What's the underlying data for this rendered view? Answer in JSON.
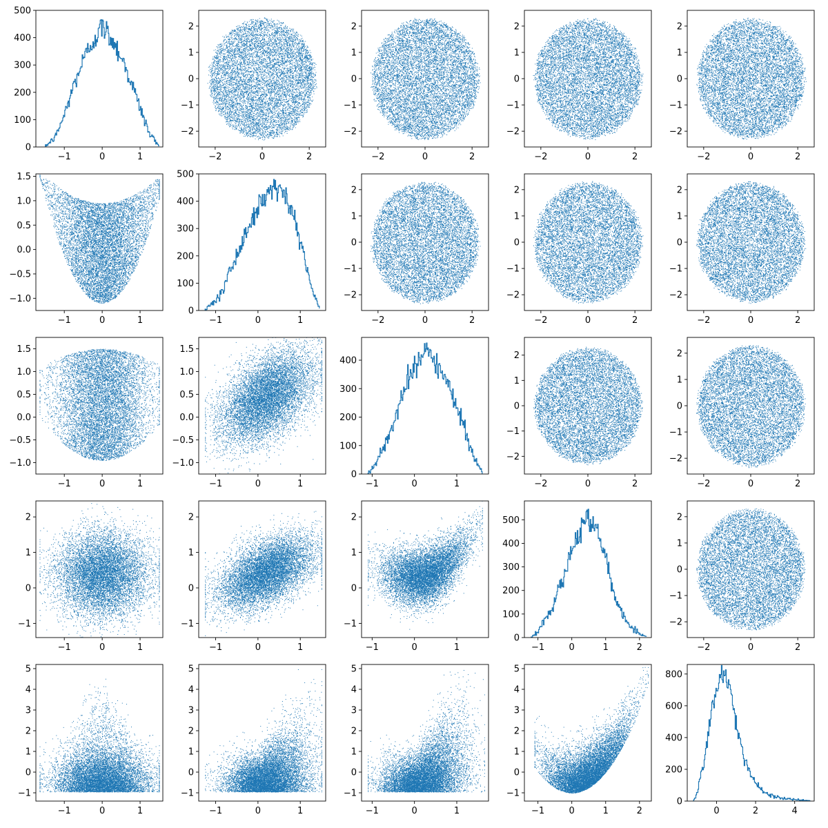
{
  "figure": {
    "rows": 5,
    "cols": 5,
    "accent_color": "#1f77b4"
  },
  "chart_data": [
    {
      "id": "r0c0",
      "type": "line",
      "shape": "hist",
      "mean": 0,
      "xlim": [
        -1.75,
        1.6
      ],
      "ylim": [
        0,
        500
      ],
      "x_ticks": [
        -1,
        0,
        1
      ],
      "y_ticks": [
        0,
        100,
        200,
        300,
        400,
        500
      ],
      "x": [
        -1.5,
        -1.25,
        -1.0,
        -0.75,
        -0.5,
        -0.25,
        0.0,
        0.25,
        0.5,
        0.75,
        1.0,
        1.25,
        1.5
      ],
      "y": [
        3,
        35,
        120,
        230,
        320,
        390,
        440,
        395,
        330,
        240,
        140,
        45,
        5
      ]
    },
    {
      "id": "r0c1",
      "type": "scatter",
      "shape": "blob",
      "xlim": [
        -2.7,
        2.7
      ],
      "ylim": [
        -2.6,
        2.6
      ],
      "x_ticks": [
        -2,
        0,
        2
      ],
      "y_ticks": [
        -2,
        -1,
        0,
        1,
        2
      ]
    },
    {
      "id": "r0c2",
      "type": "scatter",
      "shape": "blob",
      "xlim": [
        -2.7,
        2.7
      ],
      "ylim": [
        -2.6,
        2.6
      ],
      "x_ticks": [
        -2,
        0,
        2
      ],
      "y_ticks": [
        -2,
        -1,
        0,
        1,
        2
      ]
    },
    {
      "id": "r0c3",
      "type": "scatter",
      "shape": "blob",
      "xlim": [
        -2.7,
        2.7
      ],
      "ylim": [
        -2.6,
        2.6
      ],
      "x_ticks": [
        -2,
        0,
        2
      ],
      "y_ticks": [
        -2,
        -1,
        0,
        1,
        2
      ]
    },
    {
      "id": "r0c4",
      "type": "scatter",
      "shape": "blob",
      "xlim": [
        -2.7,
        2.7
      ],
      "ylim": [
        -2.6,
        2.6
      ],
      "x_ticks": [
        -2,
        0,
        2
      ],
      "y_ticks": [
        -2,
        -1,
        0,
        1,
        2
      ]
    },
    {
      "id": "r1c0",
      "type": "scatter",
      "shape": "bowl",
      "xlim": [
        -1.75,
        1.6
      ],
      "ylim": [
        -1.25,
        1.55
      ],
      "x_ticks": [
        -1,
        0,
        1
      ],
      "y_ticks": [
        -1.0,
        -0.5,
        0.0,
        0.5,
        1.0,
        1.5
      ]
    },
    {
      "id": "r1c1",
      "type": "line",
      "shape": "hist",
      "mean": 0.3,
      "xlim": [
        -1.4,
        1.6
      ],
      "ylim": [
        0,
        500
      ],
      "x_ticks": [
        -1,
        0,
        1
      ],
      "y_ticks": [
        0,
        100,
        200,
        300,
        400,
        500
      ],
      "x": [
        -1.25,
        -1.0,
        -0.75,
        -0.5,
        -0.25,
        0.0,
        0.25,
        0.5,
        0.75,
        1.0,
        1.25,
        1.45
      ],
      "y": [
        3,
        40,
        110,
        200,
        300,
        380,
        440,
        450,
        380,
        250,
        90,
        5
      ]
    },
    {
      "id": "r1c2",
      "type": "scatter",
      "shape": "blob",
      "xlim": [
        -2.7,
        2.7
      ],
      "ylim": [
        -2.6,
        2.6
      ],
      "x_ticks": [
        -2,
        0,
        2
      ],
      "y_ticks": [
        -2,
        -1,
        0,
        1,
        2
      ]
    },
    {
      "id": "r1c3",
      "type": "scatter",
      "shape": "blob",
      "xlim": [
        -2.7,
        2.7
      ],
      "ylim": [
        -2.6,
        2.6
      ],
      "x_ticks": [
        -2,
        0,
        2
      ],
      "y_ticks": [
        -2,
        -1,
        0,
        1,
        2
      ]
    },
    {
      "id": "r1c4",
      "type": "scatter",
      "shape": "blob",
      "xlim": [
        -2.7,
        2.7
      ],
      "ylim": [
        -2.6,
        2.6
      ],
      "x_ticks": [
        -2,
        0,
        2
      ],
      "y_ticks": [
        -2,
        -1,
        0,
        1,
        2
      ]
    },
    {
      "id": "r2c0",
      "type": "scatter",
      "shape": "wedge",
      "xlim": [
        -1.75,
        1.6
      ],
      "ylim": [
        -1.25,
        1.75
      ],
      "x_ticks": [
        -1,
        0,
        1
      ],
      "y_ticks": [
        -1.0,
        -0.5,
        0.0,
        0.5,
        1.0,
        1.5
      ]
    },
    {
      "id": "r2c1",
      "type": "scatter",
      "shape": "diagonal",
      "xlim": [
        -1.4,
        1.6
      ],
      "ylim": [
        -1.25,
        1.75
      ],
      "x_ticks": [
        -1,
        0,
        1
      ],
      "y_ticks": [
        -1.0,
        -0.5,
        0.0,
        0.5,
        1.0,
        1.5
      ]
    },
    {
      "id": "r2c2",
      "type": "line",
      "shape": "hist",
      "mean": 0.25,
      "xlim": [
        -1.25,
        1.75
      ],
      "ylim": [
        0,
        480
      ],
      "x_ticks": [
        -1,
        0,
        1
      ],
      "y_ticks": [
        0,
        100,
        200,
        300,
        400
      ],
      "x": [
        -1.1,
        -0.9,
        -0.6,
        -0.3,
        0.0,
        0.25,
        0.5,
        0.8,
        1.1,
        1.4,
        1.6
      ],
      "y": [
        3,
        40,
        140,
        270,
        380,
        430,
        400,
        310,
        190,
        60,
        5
      ]
    },
    {
      "id": "r2c3",
      "type": "scatter",
      "shape": "blob",
      "xlim": [
        -2.7,
        2.7
      ],
      "ylim": [
        -2.7,
        2.7
      ],
      "x_ticks": [
        -2,
        0,
        2
      ],
      "y_ticks": [
        -2,
        -1,
        0,
        1,
        2
      ]
    },
    {
      "id": "r2c4",
      "type": "scatter",
      "shape": "blob",
      "xlim": [
        -2.7,
        2.7
      ],
      "ylim": [
        -2.6,
        2.6
      ],
      "x_ticks": [
        -2,
        0,
        2
      ],
      "y_ticks": [
        -2,
        -1,
        0,
        1,
        2
      ]
    },
    {
      "id": "r3c0",
      "type": "scatter",
      "shape": "round",
      "xlim": [
        -1.75,
        1.6
      ],
      "ylim": [
        -1.4,
        2.45
      ],
      "x_ticks": [
        -1,
        0,
        1
      ],
      "y_ticks": [
        -1,
        0,
        1,
        2
      ]
    },
    {
      "id": "r3c1",
      "type": "scatter",
      "shape": "diagonal",
      "xlim": [
        -1.4,
        1.6
      ],
      "ylim": [
        -1.4,
        2.45
      ],
      "x_ticks": [
        -1,
        0,
        1
      ],
      "y_ticks": [
        -1,
        0,
        1,
        2
      ]
    },
    {
      "id": "r3c2",
      "type": "scatter",
      "shape": "curve",
      "xlim": [
        -1.25,
        1.75
      ],
      "ylim": [
        -1.4,
        2.45
      ],
      "x_ticks": [
        -1,
        0,
        1
      ],
      "y_ticks": [
        -1,
        0,
        1,
        2
      ]
    },
    {
      "id": "r3c3",
      "type": "line",
      "shape": "hist",
      "mean": 0.45,
      "xlim": [
        -1.4,
        2.35
      ],
      "ylim": [
        0,
        580
      ],
      "x_ticks": [
        -1,
        0,
        1,
        2
      ],
      "y_ticks": [
        0,
        100,
        200,
        300,
        400,
        500
      ],
      "x": [
        -1.2,
        -1.0,
        -0.6,
        -0.2,
        0.2,
        0.45,
        0.7,
        1.0,
        1.3,
        1.7,
        2.0,
        2.2
      ],
      "y": [
        3,
        30,
        120,
        280,
        440,
        520,
        460,
        330,
        160,
        50,
        15,
        3
      ]
    },
    {
      "id": "r3c4",
      "type": "scatter",
      "shape": "blob",
      "xlim": [
        -2.7,
        2.7
      ],
      "ylim": [
        -2.6,
        2.6
      ],
      "x_ticks": [
        -2,
        0,
        2
      ],
      "y_ticks": [
        -2,
        -1,
        0,
        1,
        2
      ]
    },
    {
      "id": "r4c0",
      "type": "scatter",
      "shape": "tall",
      "xlim": [
        -1.75,
        1.6
      ],
      "ylim": [
        -1.4,
        5.2
      ],
      "x_ticks": [
        -1,
        0,
        1
      ],
      "y_ticks": [
        -1,
        0,
        1,
        2,
        3,
        4,
        5
      ]
    },
    {
      "id": "r4c1",
      "type": "scatter",
      "shape": "fan",
      "xlim": [
        -1.4,
        1.6
      ],
      "ylim": [
        -1.4,
        5.2
      ],
      "x_ticks": [
        -1,
        0,
        1
      ],
      "y_ticks": [
        -1,
        0,
        1,
        2,
        3,
        4,
        5
      ]
    },
    {
      "id": "r4c2",
      "type": "scatter",
      "shape": "fan2",
      "xlim": [
        -1.25,
        1.75
      ],
      "ylim": [
        -1.4,
        5.2
      ],
      "x_ticks": [
        -1,
        0,
        1
      ],
      "y_ticks": [
        -1,
        0,
        1,
        2,
        3,
        4,
        5
      ]
    },
    {
      "id": "r4c3",
      "type": "scatter",
      "shape": "parabola",
      "xlim": [
        -1.4,
        2.35
      ],
      "ylim": [
        -1.4,
        5.2
      ],
      "x_ticks": [
        -1,
        0,
        1,
        2
      ],
      "y_ticks": [
        -1,
        0,
        1,
        2,
        3,
        4,
        5
      ]
    },
    {
      "id": "r4c4",
      "type": "line",
      "shape": "hist",
      "mean": 0.4,
      "xlim": [
        -1.5,
        5.0
      ],
      "ylim": [
        0,
        860
      ],
      "x_ticks": [
        0,
        2,
        4
      ],
      "y_ticks": [
        0,
        200,
        400,
        600,
        800
      ],
      "x": [
        -1.2,
        -1.0,
        -0.6,
        -0.2,
        0.2,
        0.4,
        0.7,
        1.0,
        1.3,
        1.6,
        2.0,
        2.5,
        3.0,
        3.5,
        4.0,
        4.8
      ],
      "y": [
        3,
        50,
        300,
        620,
        780,
        800,
        680,
        480,
        320,
        200,
        110,
        50,
        25,
        15,
        8,
        2
      ]
    }
  ]
}
